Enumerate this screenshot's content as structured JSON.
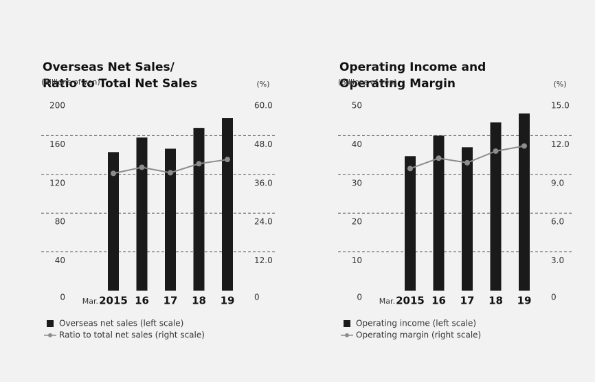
{
  "chart_data": [
    {
      "type": "bar-line",
      "title": [
        "Overseas Net Sales/",
        "Ratio to Total Net Sales"
      ],
      "y_label": "(Billions of yen)",
      "y2_label": "(%)",
      "x_prefix": "Mar.",
      "categories": [
        "2015",
        "16",
        "17",
        "18",
        "19"
      ],
      "series": [
        {
          "name": "Overseas net sales (left scale)",
          "color": "#1a1a1a",
          "kind": "bar",
          "values": [
            143,
            158,
            146.5,
            168,
            178
          ]
        },
        {
          "name": "Ratio to total net sales (right scale)",
          "color": "#8c8c8c",
          "kind": "line",
          "axis": "y2",
          "values": [
            36.3,
            38.2,
            36.5,
            39.3,
            40.6
          ]
        }
      ],
      "ylim": [
        0,
        200
      ],
      "yticks": [
        0,
        40,
        80,
        120,
        160,
        200
      ],
      "y2lim": [
        0,
        60
      ],
      "y2ticks": [
        0,
        {
          "value": 12,
          "label": "12.0"
        },
        {
          "value": 24,
          "label": "24.0"
        },
        {
          "value": 36,
          "label": "36.0"
        },
        {
          "value": 48,
          "label": "48.0"
        },
        {
          "value": 60,
          "label": "60.0"
        }
      ],
      "grid": true
    },
    {
      "type": "bar-line",
      "title": [
        "Operating Income and",
        "Operating Margin"
      ],
      "y_label": "(Billions of yen)",
      "y2_label": "(%)",
      "x_prefix": "Mar.",
      "categories": [
        "2015",
        "16",
        "17",
        "18",
        "19"
      ],
      "series": [
        {
          "name": "Operating income (left scale)",
          "color": "#1a1a1a",
          "kind": "bar",
          "values": [
            34.7,
            40,
            37,
            43.4,
            45.7
          ]
        },
        {
          "name": "Operating margin (right scale)",
          "color": "#8c8c8c",
          "kind": "line",
          "axis": "y2",
          "values": [
            9.45,
            10.25,
            9.9,
            10.8,
            11.2
          ]
        }
      ],
      "ylim": [
        0,
        50
      ],
      "yticks": [
        0,
        10,
        20,
        30,
        40,
        50
      ],
      "y2lim": [
        0,
        15
      ],
      "y2ticks": [
        0,
        {
          "value": 3,
          "label": "3.0"
        },
        {
          "value": 6,
          "label": "6.0"
        },
        {
          "value": 9,
          "label": "9.0"
        },
        {
          "value": 12,
          "label": "12.0"
        },
        {
          "value": 15,
          "label": "15.0"
        }
      ],
      "grid": true
    }
  ]
}
